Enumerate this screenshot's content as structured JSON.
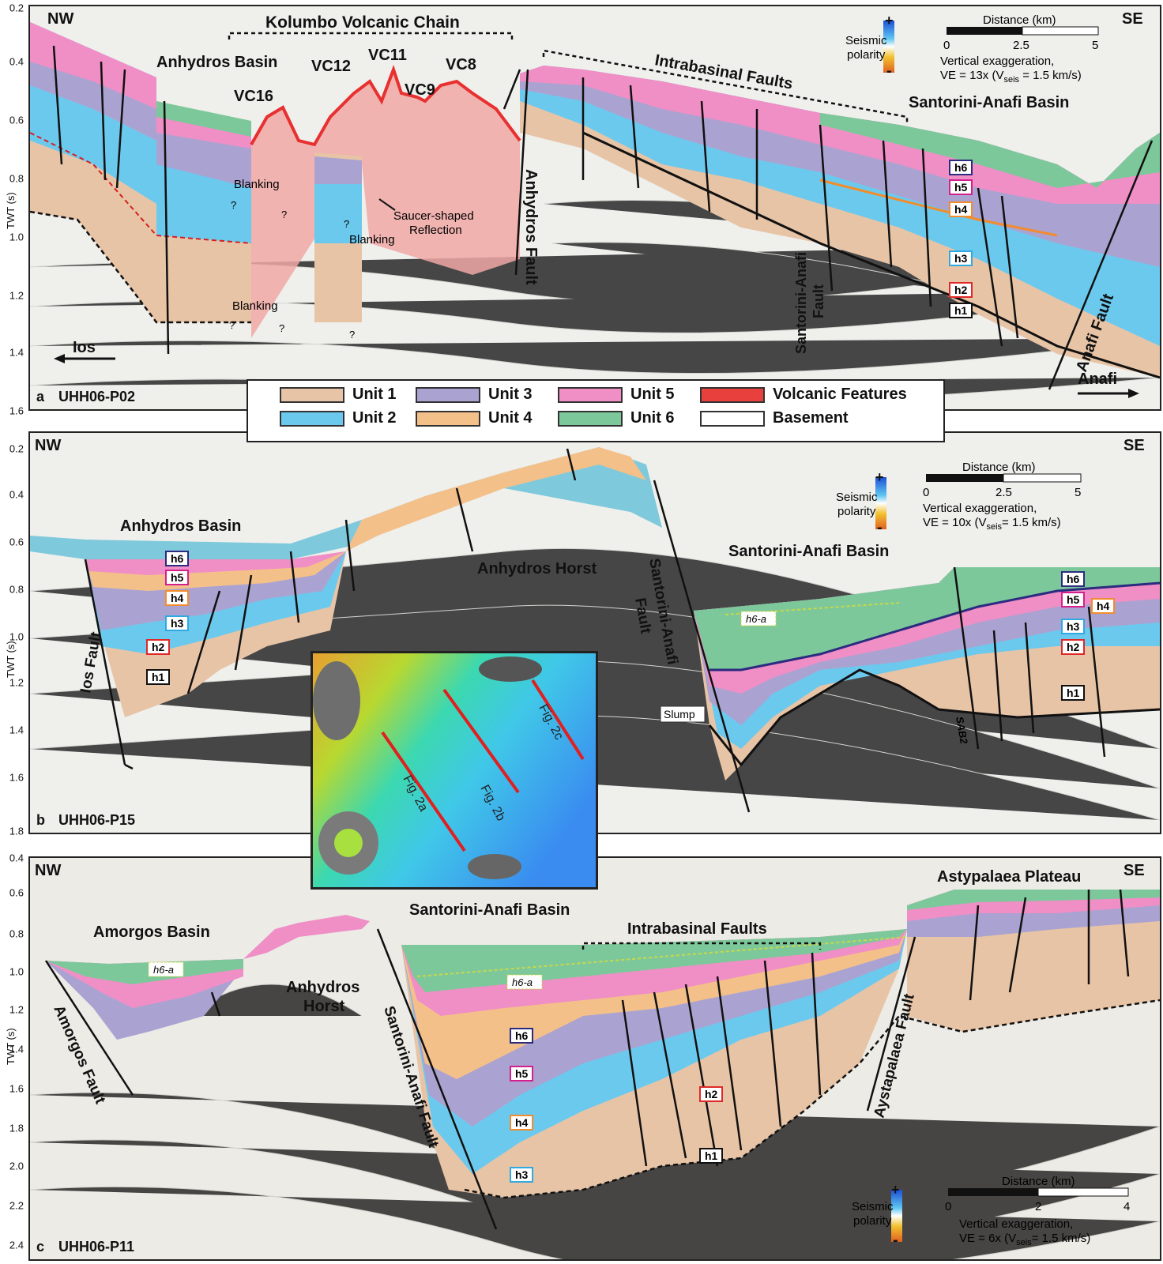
{
  "axis": {
    "title": "TWT (s)"
  },
  "panel_a": {
    "ticks": [
      "0.2",
      "0.4",
      "0.6",
      "0.8",
      "1.0",
      "1.2",
      "1.4",
      "1.6"
    ],
    "letter": "a",
    "line": "UHH06-P02",
    "nw": "NW",
    "se": "SE",
    "chain": "Kolumbo Volcanic Chain",
    "anhydros_basin": "Anhydros Basin",
    "vc16": "VC16",
    "vc12": "VC12",
    "vc11": "VC11",
    "vc9": "VC9",
    "vc8": "VC8",
    "intrabasinal": "Intrabasinal Faults",
    "sa_basin": "Santorini-Anafi Basin",
    "blanking": "Blanking",
    "saucer": "Saucer-shaped",
    "reflection": "Reflection",
    "q": "?",
    "anhydros_fault": "Anhydros Fault",
    "sa_fault_1": "Santorini-Anafi",
    "sa_fault_2": "Fault",
    "anafi_fault": "Anafi Fault",
    "ios": "Ios",
    "anafi": "Anafi",
    "polarity_1": "Seismic",
    "polarity_2": "polarity",
    "plus": "+",
    "minus": "-",
    "dist_title": "Distance (km)",
    "d0": "0",
    "d1": "2.5",
    "d2": "5",
    "ve_1": "Vertical exaggeration,",
    "ve_2a": "VE = 13x (V",
    "ve_sub": "seis",
    "ve_2b": " = 1.5 km/s)",
    "horizons": [
      "h6",
      "h5",
      "h4",
      "h3",
      "h2",
      "h1"
    ]
  },
  "legend": {
    "items": [
      {
        "label": "Unit 1",
        "color": "#e8c4a6"
      },
      {
        "label": "Unit 2",
        "color": "#6cc9ee"
      },
      {
        "label": "Unit 3",
        "color": "#aaa3d1"
      },
      {
        "label": "Unit 4",
        "color": "#f4c08a"
      },
      {
        "label": "Unit 5",
        "color": "#f08ec6"
      },
      {
        "label": "Unit 6",
        "color": "#7dc89a"
      },
      {
        "label": "Volcanic Features",
        "color": "#e8403c"
      },
      {
        "label": "Basement",
        "color": "#ffffff"
      }
    ]
  },
  "panel_b": {
    "ticks": [
      "0.2",
      "0.4",
      "0.6",
      "0.8",
      "1.0",
      "1.2",
      "1.4",
      "1.6",
      "1.8"
    ],
    "letter": "b",
    "line": "UHH06-P15",
    "nw": "NW",
    "se": "SE",
    "anhydros_basin": "Anhydros Basin",
    "anhydros_horst": "Anhydros Horst",
    "sa_basin": "Santorini-Anafi Basin",
    "sa_fault_1": "Santorini-Anafi",
    "sa_fault_2": "Fault",
    "ios_fault": "Ios Fault",
    "slump": "Slump",
    "sab2": "SAB2",
    "h6a": "h6-a",
    "polarity_1": "Seismic",
    "polarity_2": "polarity",
    "plus": "+",
    "minus": "-",
    "dist_title": "Distance (km)",
    "d0": "0",
    "d1": "2.5",
    "d2": "5",
    "ve_1": "Vertical exaggeration,",
    "ve_2a": "VE = 10x (V",
    "ve_sub": "seis",
    "ve_2b": "= 1.5 km/s)",
    "horizons": [
      "h6",
      "h5",
      "h4",
      "h3",
      "h2",
      "h1"
    ],
    "h4_right": "h4"
  },
  "inset": {
    "fig2a": "Fig. 2a",
    "fig2b": "Fig. 2b",
    "fig2c": "Fig. 2c"
  },
  "panel_c": {
    "ticks": [
      "0.4",
      "0.6",
      "0.8",
      "1.0",
      "1.2",
      "1.4",
      "1.6",
      "1.8",
      "2.0",
      "2.2",
      "2.4"
    ],
    "letter": "c",
    "line": "UHH06-P11",
    "nw": "NW",
    "se": "SE",
    "amorgos_basin": "Amorgos Basin",
    "anhydros_horst_1": "Anhydros",
    "anhydros_horst_2": "Horst",
    "sa_basin": "Santorini-Anafi Basin",
    "intrabasinal": "Intrabasinal Faults",
    "astypalaea": "Astypalaea Plateau",
    "amorgos_fault": "Amorgos Fault",
    "sa_fault": "Santorini-Anafi Fault",
    "ays_fault": "Aystapalaea Fault",
    "h6a": "h6-a",
    "polarity_1": "Seismic",
    "polarity_2": "polarity",
    "plus": "+",
    "minus": "-",
    "dist_title": "Distance (km)",
    "d0": "0",
    "d1": "2",
    "d2": "4",
    "ve_1": "Vertical exaggeration,",
    "ve_2a": "VE = 6x (V",
    "ve_sub": "seis",
    "ve_2b": "= 1.5 km/s)",
    "horizons": [
      "h6",
      "h5",
      "h4",
      "h3",
      "h2",
      "h1"
    ]
  }
}
